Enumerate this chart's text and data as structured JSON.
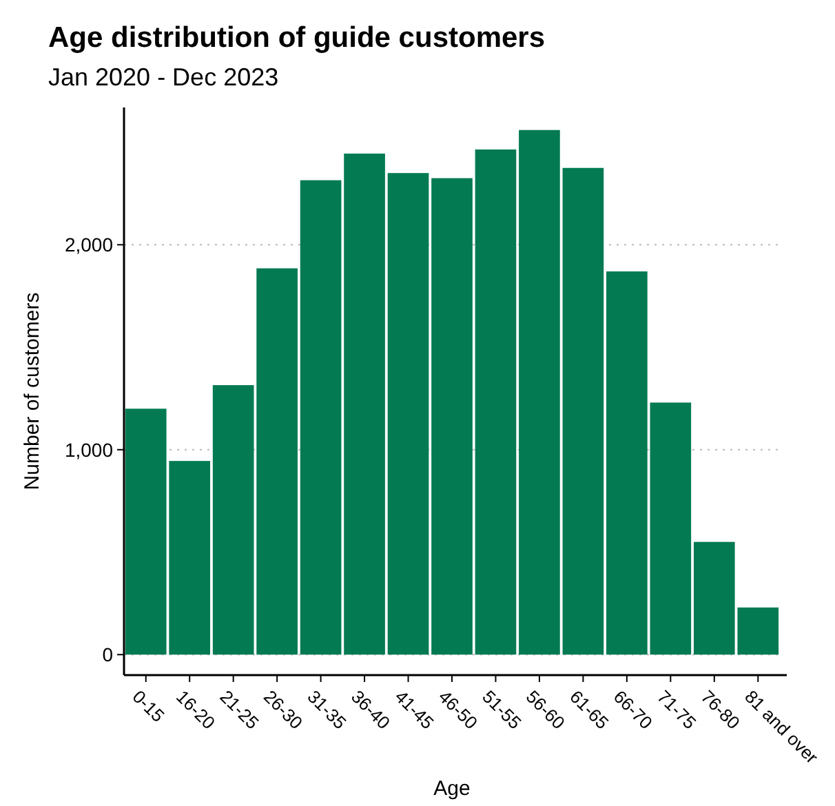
{
  "chart_data": {
    "type": "bar",
    "title": "Age distribution of guide customers",
    "subtitle": "Jan 2020 - Dec 2023",
    "xlabel": "Age",
    "ylabel": "Number of customers",
    "categories": [
      "0-15",
      "16-20",
      "21-25",
      "26-30",
      "31-35",
      "36-40",
      "41-45",
      "46-50",
      "51-55",
      "56-60",
      "61-65",
      "66-70",
      "71-75",
      "76-80",
      "81 and over"
    ],
    "values": [
      1200,
      945,
      1315,
      1885,
      2315,
      2445,
      2350,
      2325,
      2465,
      2560,
      2375,
      1870,
      1230,
      550,
      230
    ],
    "color": "#037a52",
    "ylim": [
      -100,
      2670
    ],
    "yticks": [
      0,
      {
        "value": 1000,
        "label": "1,000"
      },
      {
        "value": 2000,
        "label": "2,000"
      }
    ],
    "grid": "y"
  }
}
